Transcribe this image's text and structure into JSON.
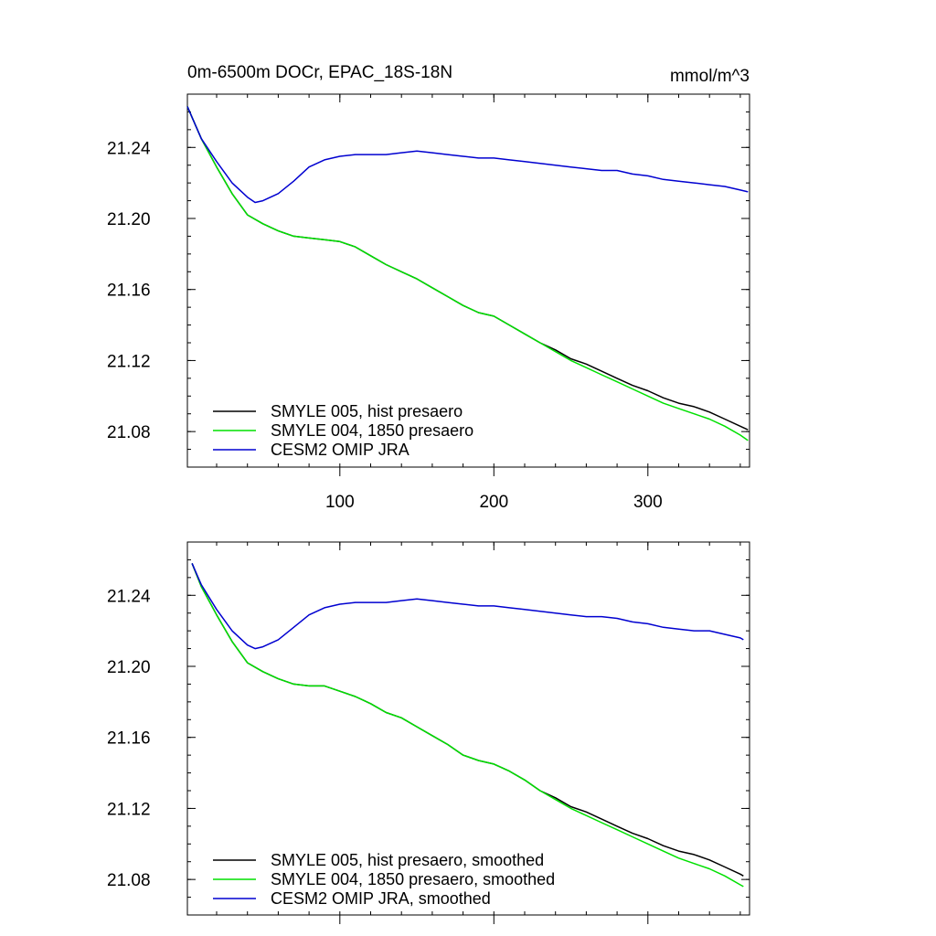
{
  "chart_data": [
    {
      "type": "line",
      "title": "0m-6500m DOCr, EPAC_18S-18N",
      "units": "mmol/m^3",
      "xlim": [
        1,
        366
      ],
      "ylim": [
        21.06,
        21.27
      ],
      "xticks": [
        100,
        200,
        300
      ],
      "yticks": [
        21.08,
        21.12,
        21.16,
        21.2,
        21.24
      ],
      "ytick_labels": [
        "21.08",
        "21.12",
        "21.16",
        "21.20",
        "21.24"
      ],
      "legend_position": "bottom-left",
      "series": [
        {
          "name": "SMYLE 005, hist presaero",
          "color": "#000000",
          "x": [
            1,
            10,
            20,
            30,
            40,
            50,
            60,
            70,
            80,
            90,
            100,
            110,
            120,
            130,
            140,
            150,
            160,
            170,
            180,
            190,
            200,
            210,
            220,
            230,
            240,
            250,
            260,
            270,
            280,
            290,
            300,
            310,
            320,
            330,
            340,
            350,
            360,
            365
          ],
          "y": [
            21.263,
            21.245,
            21.229,
            21.214,
            21.202,
            21.197,
            21.193,
            21.19,
            21.189,
            21.188,
            21.187,
            21.184,
            21.179,
            21.174,
            21.17,
            21.166,
            21.161,
            21.156,
            21.151,
            21.147,
            21.145,
            21.14,
            21.135,
            21.13,
            21.126,
            21.121,
            21.118,
            21.114,
            21.11,
            21.106,
            21.103,
            21.099,
            21.096,
            21.094,
            21.091,
            21.087,
            21.083,
            21.081
          ]
        },
        {
          "name": "SMYLE 004, 1850 presaero",
          "color": "#00e000",
          "x": [
            1,
            10,
            20,
            30,
            40,
            50,
            60,
            70,
            80,
            90,
            100,
            110,
            120,
            130,
            140,
            150,
            160,
            170,
            180,
            190,
            200,
            210,
            220,
            230,
            240,
            250,
            260,
            270,
            280,
            290,
            300,
            310,
            320,
            330,
            340,
            350,
            360,
            365
          ],
          "y": [
            21.263,
            21.245,
            21.229,
            21.214,
            21.202,
            21.197,
            21.193,
            21.19,
            21.189,
            21.188,
            21.187,
            21.184,
            21.179,
            21.174,
            21.17,
            21.166,
            21.161,
            21.156,
            21.151,
            21.147,
            21.145,
            21.14,
            21.135,
            21.13,
            21.125,
            21.12,
            21.116,
            21.112,
            21.108,
            21.104,
            21.1,
            21.096,
            21.093,
            21.09,
            21.087,
            21.083,
            21.078,
            21.075
          ]
        },
        {
          "name": "CESM2 OMIP JRA",
          "color": "#0000d0",
          "x": [
            1,
            10,
            20,
            30,
            40,
            45,
            50,
            60,
            70,
            80,
            90,
            100,
            110,
            120,
            130,
            140,
            150,
            160,
            170,
            180,
            190,
            200,
            210,
            220,
            230,
            240,
            250,
            260,
            270,
            280,
            290,
            300,
            310,
            320,
            330,
            340,
            350,
            360,
            365
          ],
          "y": [
            21.263,
            21.245,
            21.232,
            21.22,
            21.212,
            21.209,
            21.21,
            21.214,
            21.221,
            21.229,
            21.233,
            21.235,
            21.236,
            21.236,
            21.236,
            21.237,
            21.238,
            21.237,
            21.236,
            21.235,
            21.234,
            21.234,
            21.233,
            21.232,
            21.231,
            21.23,
            21.229,
            21.228,
            21.227,
            21.227,
            21.225,
            21.224,
            21.222,
            21.221,
            21.22,
            21.219,
            21.218,
            21.216,
            21.215
          ]
        }
      ]
    },
    {
      "type": "line",
      "title": "",
      "xlim": [
        1,
        366
      ],
      "ylim": [
        21.06,
        21.27
      ],
      "xticks": [
        100,
        200,
        300
      ],
      "yticks": [
        21.08,
        21.12,
        21.16,
        21.2,
        21.24
      ],
      "ytick_labels": [
        "21.08",
        "21.12",
        "21.16",
        "21.20",
        "21.24"
      ],
      "legend_position": "bottom-left",
      "series": [
        {
          "name": "SMYLE 005, hist presaero, smoothed",
          "color": "#000000",
          "x": [
            4,
            10,
            20,
            30,
            40,
            50,
            60,
            70,
            80,
            90,
            100,
            110,
            120,
            130,
            140,
            150,
            160,
            170,
            180,
            190,
            200,
            210,
            220,
            230,
            240,
            250,
            260,
            270,
            280,
            290,
            300,
            310,
            320,
            330,
            340,
            350,
            360,
            362
          ],
          "y": [
            21.258,
            21.245,
            21.229,
            21.214,
            21.202,
            21.197,
            21.193,
            21.19,
            21.189,
            21.189,
            21.186,
            21.183,
            21.179,
            21.174,
            21.171,
            21.166,
            21.161,
            21.156,
            21.15,
            21.147,
            21.145,
            21.141,
            21.136,
            21.13,
            21.126,
            21.121,
            21.118,
            21.114,
            21.11,
            21.106,
            21.103,
            21.099,
            21.096,
            21.094,
            21.091,
            21.087,
            21.083,
            21.082
          ]
        },
        {
          "name": "SMYLE 004, 1850 presaero, smoothed",
          "color": "#00e000",
          "x": [
            4,
            10,
            20,
            30,
            40,
            50,
            60,
            70,
            80,
            90,
            100,
            110,
            120,
            130,
            140,
            150,
            160,
            170,
            180,
            190,
            200,
            210,
            220,
            230,
            240,
            250,
            260,
            270,
            280,
            290,
            300,
            310,
            320,
            330,
            340,
            350,
            360,
            362
          ],
          "y": [
            21.258,
            21.245,
            21.229,
            21.214,
            21.202,
            21.197,
            21.193,
            21.19,
            21.189,
            21.189,
            21.186,
            21.183,
            21.179,
            21.174,
            21.171,
            21.166,
            21.161,
            21.156,
            21.15,
            21.147,
            21.145,
            21.141,
            21.136,
            21.13,
            21.125,
            21.12,
            21.116,
            21.112,
            21.108,
            21.104,
            21.1,
            21.096,
            21.092,
            21.089,
            21.086,
            21.082,
            21.077,
            21.076
          ]
        },
        {
          "name": "CESM2 OMIP JRA, smoothed",
          "color": "#0000d0",
          "x": [
            4,
            10,
            20,
            30,
            40,
            45,
            50,
            60,
            70,
            80,
            90,
            100,
            110,
            120,
            130,
            140,
            150,
            160,
            170,
            180,
            190,
            200,
            210,
            220,
            230,
            240,
            250,
            260,
            270,
            280,
            290,
            300,
            310,
            320,
            330,
            340,
            350,
            360,
            362
          ],
          "y": [
            21.258,
            21.246,
            21.232,
            21.22,
            21.212,
            21.21,
            21.211,
            21.215,
            21.222,
            21.229,
            21.233,
            21.235,
            21.236,
            21.236,
            21.236,
            21.237,
            21.238,
            21.237,
            21.236,
            21.235,
            21.234,
            21.234,
            21.233,
            21.232,
            21.231,
            21.23,
            21.229,
            21.228,
            21.228,
            21.227,
            21.225,
            21.224,
            21.222,
            21.221,
            21.22,
            21.22,
            21.218,
            21.216,
            21.215
          ]
        }
      ]
    }
  ]
}
